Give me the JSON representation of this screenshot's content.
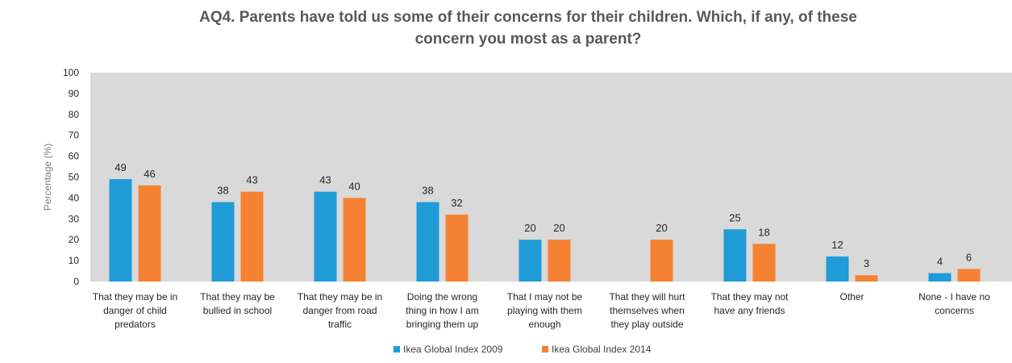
{
  "chart_data": {
    "type": "bar",
    "title_lines": [
      "AQ4. Parents have told us some of their concerns for their children. Which, if any, of these",
      "concern you most as a parent?"
    ],
    "ylabel": "Percentage (%)",
    "xlabel": "",
    "ylim": [
      0,
      100
    ],
    "yticks": [
      0,
      10,
      20,
      30,
      40,
      50,
      60,
      70,
      80,
      90,
      100
    ],
    "grid": false,
    "legend_position": "bottom",
    "categories": [
      [
        "That they may be in",
        "danger of child",
        "predators"
      ],
      [
        "That they may be",
        "bullied in school"
      ],
      [
        "That they may be in",
        "danger from road",
        "traffic"
      ],
      [
        "Doing the wrong",
        "thing in how I am",
        "bringing them up"
      ],
      [
        "That I may not be",
        "playing with them",
        "enough"
      ],
      [
        "That they will hurt",
        "themselves when",
        "they play outside"
      ],
      [
        "That they may not",
        "have any friends"
      ],
      [
        "Other"
      ],
      [
        "None - I have no",
        "concerns"
      ]
    ],
    "series": [
      {
        "name": "Ikea Global Index 2009",
        "color": "#1f9bd7",
        "values": [
          49,
          38,
          43,
          38,
          20,
          null,
          25,
          12,
          4
        ]
      },
      {
        "name": "Ikea Global Index 2014",
        "color": "#f58232",
        "values": [
          46,
          43,
          40,
          32,
          20,
          20,
          18,
          3,
          6
        ]
      }
    ],
    "plot_background": "#d9d9d9"
  }
}
